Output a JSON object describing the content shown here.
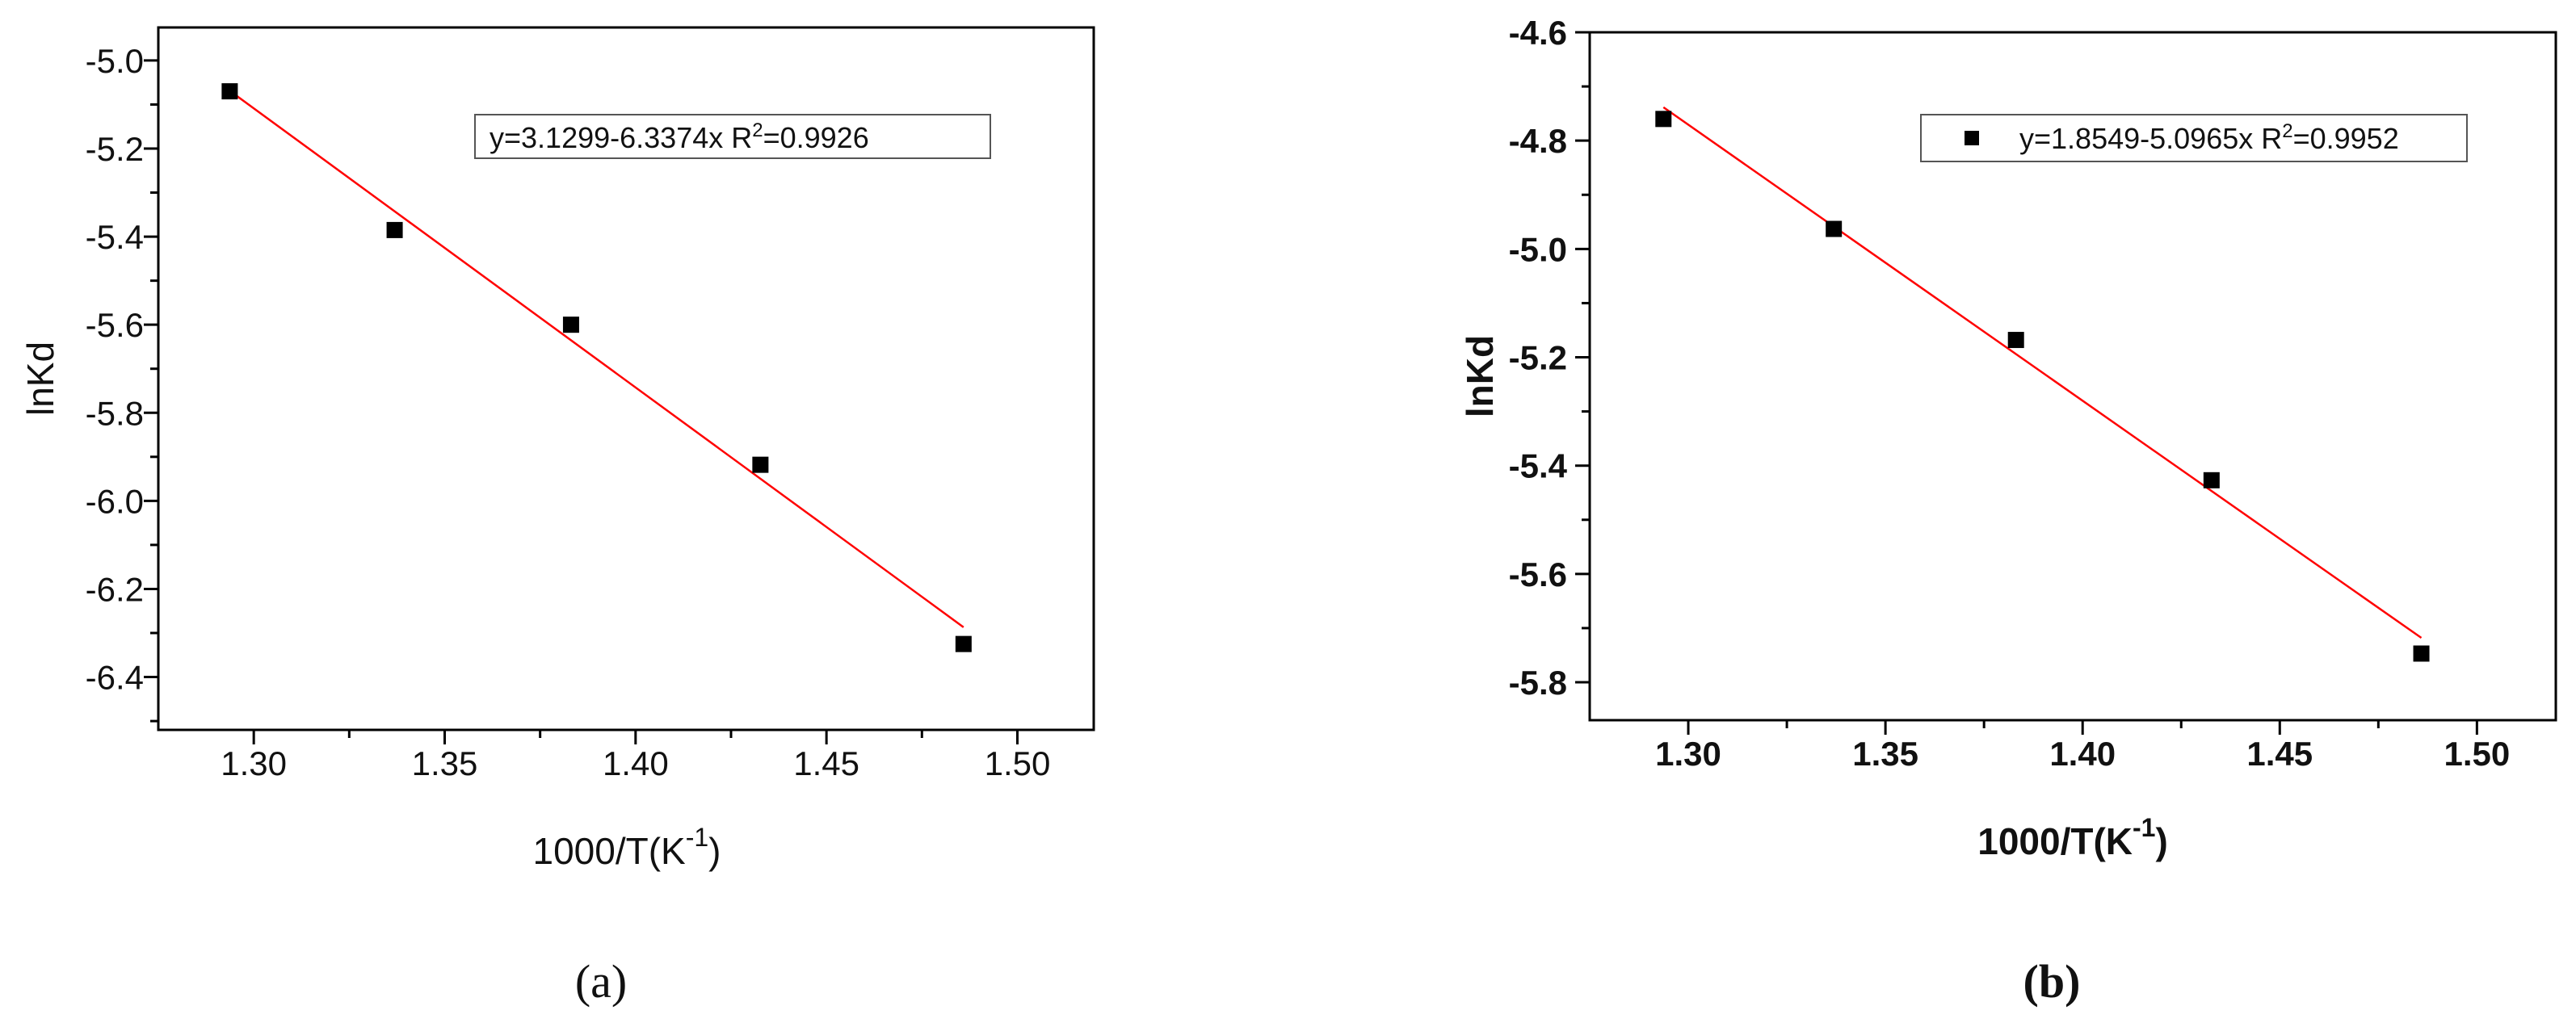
{
  "chart_data": [
    {
      "type": "scatter",
      "caption": "(a)",
      "xlabel": "1000/T(K",
      "xlabel_sup": "-1",
      "xlabel_close": ")",
      "ylabel": "lnKd",
      "xlim": [
        1.275,
        1.52
      ],
      "ylim": [
        -6.52,
        -4.925
      ],
      "xticks": [
        1.3,
        1.35,
        1.4,
        1.45,
        1.5
      ],
      "xtick_labels": [
        "1.30",
        "1.35",
        "1.40",
        "1.45",
        "1.50"
      ],
      "yticks": [
        -5.0,
        -5.2,
        -5.4,
        -5.6,
        -5.8,
        -6.0,
        -6.2,
        -6.4
      ],
      "ytick_labels": [
        "-5.0",
        "-5.2",
        "-5.4",
        "-5.6",
        "-5.8",
        "-6.0",
        "-6.2",
        "-6.4"
      ],
      "x": [
        1.2937,
        1.3369,
        1.3831,
        1.4327,
        1.4859
      ],
      "y": [
        -5.07,
        -5.385,
        -5.6,
        -5.918,
        -6.325
      ],
      "fit": {
        "intercept": 3.1299,
        "slope": -6.3374
      },
      "legend_text": "y=3.1299-6.3374x R",
      "legend_sup": "2",
      "legend_value": "=0.9926",
      "legend_marker": false,
      "bold_labels": false,
      "marker_color": "#000000",
      "fit_color": "#ff0000"
    },
    {
      "type": "scatter",
      "caption": "(b)",
      "xlabel": "1000/T(K",
      "xlabel_sup": "-1",
      "xlabel_close": ")",
      "ylabel": "lnKd",
      "xlim": [
        1.275,
        1.52
      ],
      "ylim": [
        -5.87,
        -4.6
      ],
      "xticks": [
        1.3,
        1.35,
        1.4,
        1.45,
        1.5
      ],
      "xtick_labels": [
        "1.30",
        "1.35",
        "1.40",
        "1.45",
        "1.50"
      ],
      "yticks": [
        -4.6,
        -4.8,
        -5.0,
        -5.2,
        -5.4,
        -5.6,
        -5.8
      ],
      "ytick_labels": [
        "-4.6",
        "-4.8",
        "-5.0",
        "-5.2",
        "-5.4",
        "-5.6",
        "-5.8"
      ],
      "x": [
        1.2937,
        1.3369,
        1.3831,
        1.4327,
        1.4859
      ],
      "y": [
        -4.76,
        -4.963,
        -5.168,
        -5.427,
        -5.747
      ],
      "fit": {
        "intercept": 1.8549,
        "slope": -5.0965
      },
      "legend_text": "y=1.8549-5.0965x R",
      "legend_sup": "2",
      "legend_value": "=0.9952",
      "legend_marker": true,
      "bold_labels": true,
      "marker_color": "#000000",
      "fit_color": "#ff0000"
    }
  ]
}
